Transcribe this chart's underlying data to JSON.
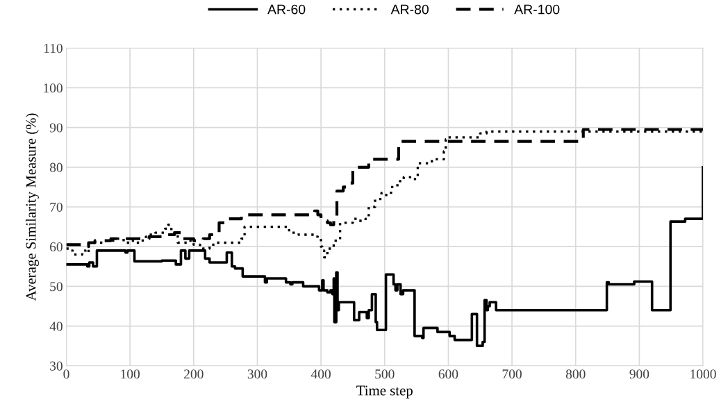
{
  "chart_data": {
    "type": "step",
    "xlabel": "Time step",
    "ylabel": "Average Similarity Measure (%)",
    "xlim": [
      0,
      1000
    ],
    "xticks": [
      0,
      100,
      200,
      300,
      400,
      500,
      600,
      700,
      800,
      900,
      1000
    ],
    "ylim": [
      30,
      110
    ],
    "yticks": [
      30,
      40,
      50,
      60,
      70,
      80,
      90,
      100,
      110
    ],
    "grid": true,
    "legend": "top",
    "series": [
      {
        "name": "AR-60",
        "color": "#000000",
        "line_style": "solid",
        "x": [
          0,
          30,
          33,
          36,
          42,
          48,
          90,
          93,
          96,
          107,
          150,
          170,
          172,
          180,
          187,
          193,
          218,
          225,
          252,
          258,
          260,
          265,
          277,
          310,
          312,
          315,
          345,
          352,
          355,
          372,
          397,
          402,
          404,
          410,
          415,
          418,
          420,
          421,
          424,
          426,
          428,
          452,
          460,
          472,
          475,
          480,
          486,
          488,
          502,
          514,
          517,
          520,
          525,
          529,
          547,
          559,
          561,
          583,
          602,
          610,
          637,
          645,
          654,
          657,
          660,
          662,
          665,
          675,
          849,
          852,
          892,
          920,
          949,
          972,
          1000
        ],
        "values": [
          55.5,
          55.5,
          55,
          56,
          55,
          59,
          59,
          58.5,
          59,
          56.3,
          56.5,
          56.5,
          55.5,
          59,
          57,
          59,
          57,
          56,
          58.5,
          58.5,
          55,
          54.5,
          52.5,
          52.5,
          51,
          52,
          51,
          50.5,
          51,
          50,
          49,
          51.5,
          49,
          48.5,
          49,
          48,
          52,
          41,
          53.5,
          44,
          46,
          41.5,
          43.5,
          42,
          44,
          48,
          41,
          39,
          53,
          50.5,
          49,
          50.5,
          48,
          49,
          37.5,
          37,
          39.5,
          38.5,
          37.5,
          36.5,
          43,
          35,
          36,
          46.5,
          44,
          45,
          46,
          44,
          51,
          50.5,
          51.2,
          44,
          66.3,
          67,
          80
        ]
      },
      {
        "name": "AR-80",
        "color": "#000000",
        "line_style": "dotted",
        "x": [
          0,
          5,
          10,
          20,
          25,
          30,
          35,
          60,
          80,
          90,
          100,
          110,
          120,
          125,
          130,
          140,
          155,
          160,
          165,
          170,
          175,
          195,
          200,
          210,
          215,
          225,
          235,
          275,
          280,
          340,
          350,
          365,
          390,
          395,
          400,
          402,
          405,
          410,
          420,
          430,
          450,
          460,
          470,
          475,
          485,
          495,
          500,
          510,
          520,
          530,
          540,
          552,
          570,
          580,
          593,
          596,
          600,
          630,
          650,
          660,
          1000
        ],
        "values": [
          59.5,
          59,
          58,
          58,
          59,
          58.5,
          61,
          61.5,
          62,
          61,
          61.5,
          61,
          62,
          62.5,
          63,
          63.5,
          64.5,
          65.5,
          64,
          63,
          61,
          61.5,
          60.5,
          60,
          59.5,
          60.5,
          61,
          62,
          65,
          65,
          63.5,
          63,
          62.5,
          62,
          60,
          59,
          57.3,
          59.5,
          61.5,
          66,
          67,
          66.5,
          67,
          70,
          72,
          73.5,
          73,
          75,
          76.5,
          77.5,
          77,
          81,
          81.5,
          82,
          84,
          87,
          87.5,
          87.5,
          88.5,
          89,
          89
        ]
      },
      {
        "name": "AR-100",
        "color": "#000000",
        "line_style": "dashed",
        "x": [
          0,
          30,
          35,
          45,
          70,
          130,
          160,
          170,
          180,
          200,
          215,
          225,
          240,
          255,
          275,
          390,
          395,
          400,
          405,
          410,
          415,
          420,
          425,
          435,
          445,
          450,
          475,
          480,
          522,
          812,
          1000
        ],
        "values": [
          60.5,
          60,
          61,
          61.5,
          62,
          62.5,
          63,
          63.5,
          62,
          61.5,
          62,
          63,
          66,
          67,
          68,
          69,
          68,
          67,
          66.5,
          66,
          65.5,
          67,
          74,
          75,
          76,
          80,
          81,
          82,
          86.5,
          89.5,
          89.5
        ]
      }
    ]
  }
}
